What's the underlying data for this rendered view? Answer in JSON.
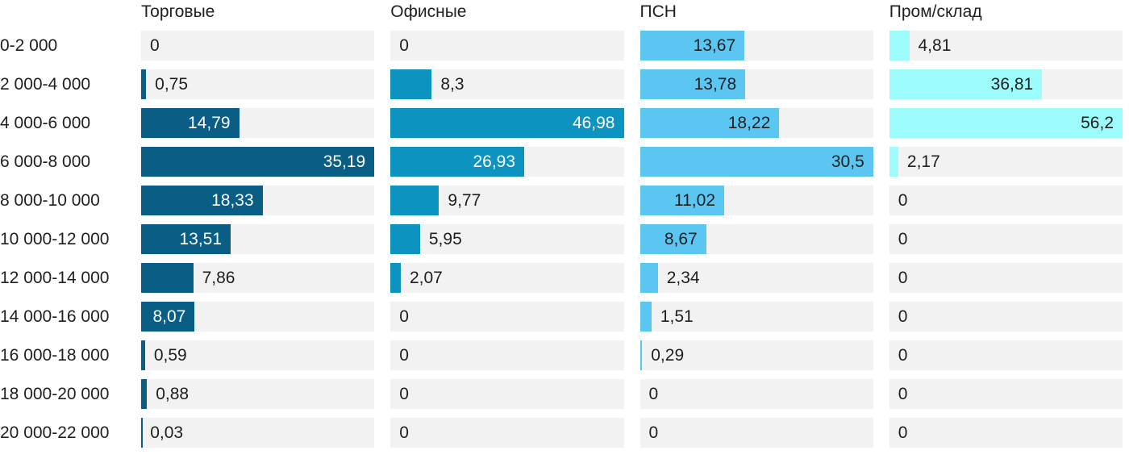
{
  "chart_data": {
    "type": "bar",
    "orientation": "horizontal",
    "title": "",
    "xlabel": "",
    "ylabel": "",
    "grid": false,
    "legend_position": "column-headers-top",
    "track_color": "#f2f2f2",
    "text_color": "#1f1f1f",
    "categories": [
      "0-2 000",
      "2 000-4 000",
      "4 000-6 000",
      "6 000-8 000",
      "8 000-10 000",
      "10 000-12 000",
      "12 000-14 000",
      "14 000-16 000",
      "16 000-18 000",
      "18 000-20 000",
      "20 000-22 000"
    ],
    "series": [
      {
        "name": "Торговые",
        "color": "#0a5d85",
        "inside_text_color": "#ffffff",
        "axis_max": 35.19,
        "values": [
          0,
          0.75,
          14.79,
          35.19,
          18.33,
          13.51,
          7.86,
          8.07,
          0.59,
          0.88,
          0.03
        ],
        "labels": [
          "0",
          "0,75",
          "14,79",
          "35,19",
          "18,33",
          "13,51",
          "7,86",
          "8,07",
          "0,59",
          "0,88",
          "0,03"
        ],
        "label_inside": [
          false,
          false,
          true,
          true,
          true,
          true,
          false,
          true,
          false,
          false,
          false
        ]
      },
      {
        "name": "Офисные",
        "color": "#0c93bf",
        "inside_text_color": "#ffffff",
        "axis_max": 46.98,
        "values": [
          0,
          8.3,
          46.98,
          26.93,
          9.77,
          5.95,
          2.07,
          0,
          0,
          0,
          0
        ],
        "labels": [
          "0",
          "8,3",
          "46,98",
          "26,93",
          "9,77",
          "5,95",
          "2,07",
          "0",
          "0",
          "0",
          "0"
        ],
        "label_inside": [
          false,
          false,
          true,
          true,
          false,
          false,
          false,
          false,
          false,
          false,
          false
        ]
      },
      {
        "name": "ПСН",
        "color": "#5cc6f2",
        "inside_text_color": "#1f1f1f",
        "axis_max": 30.5,
        "values": [
          13.67,
          13.78,
          18.22,
          30.5,
          11.02,
          8.67,
          2.34,
          1.51,
          0.29,
          0,
          0
        ],
        "labels": [
          "13,67",
          "13,78",
          "18,22",
          "30,5",
          "11,02",
          "8,67",
          "2,34",
          "1,51",
          "0,29",
          "0",
          "0"
        ],
        "label_inside": [
          true,
          true,
          true,
          true,
          true,
          true,
          false,
          false,
          false,
          false,
          false
        ]
      },
      {
        "name": "Пром/склад",
        "color": "#9dfcfc",
        "inside_text_color": "#1f1f1f",
        "axis_max": 56.2,
        "values": [
          4.81,
          36.81,
          56.2,
          2.17,
          0,
          0,
          0,
          0,
          0,
          0,
          0
        ],
        "labels": [
          "4,81",
          "36,81",
          "56,2",
          "2,17",
          "0",
          "0",
          "0",
          "0",
          "0",
          "0",
          "0"
        ],
        "label_inside": [
          false,
          true,
          true,
          false,
          false,
          false,
          false,
          false,
          false,
          false,
          false
        ]
      }
    ]
  }
}
